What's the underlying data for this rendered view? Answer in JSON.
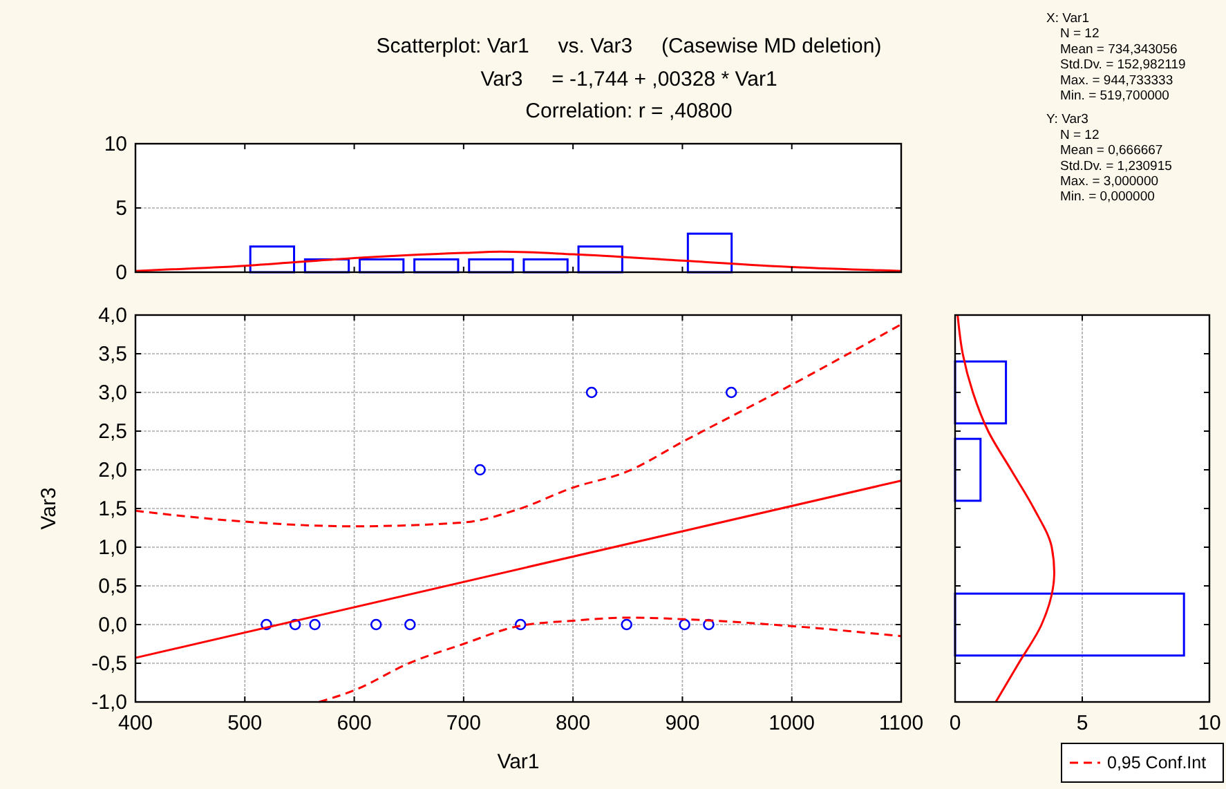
{
  "chart_data": [
    {
      "type": "histogram",
      "title": "Scatterplot: Var1     vs. Var3     (Casewise MD deletion)",
      "subtitle": "Var3     = -1,744 + ,00328 * Var1",
      "annotations": [
        "Correlation: r = ,40800",
        "X: Var1",
        "N = 12",
        "Mean = 734,343056",
        "Std.Dv. = 152,982119",
        "Max. = 944,733333",
        "Min. = 519,700000",
        "Y: Var3",
        "N = 12",
        "Mean = 0,666667",
        "Std.Dv. = 1,230915",
        "Max. = 3,000000",
        "Min. = 0,000000"
      ],
      "xlim": [
        400,
        1100
      ],
      "xticks": [
        {
          "value": 400,
          "label": null
        },
        {
          "value": 500,
          "label": null
        },
        {
          "value": 600,
          "label": null
        },
        {
          "value": 700,
          "label": null
        },
        {
          "value": 800,
          "label": null
        },
        {
          "value": 900,
          "label": null
        },
        {
          "value": 1000,
          "label": null
        },
        {
          "value": 1100,
          "label": null
        }
      ],
      "ylim": [
        0,
        10
      ],
      "yticks": [
        0,
        5,
        10
      ],
      "grid": "y",
      "tick_labels": "y",
      "series": [
        {
          "color": "#0000ff",
          "bins": [
            450,
            500,
            550,
            600,
            650,
            700,
            750,
            800,
            850,
            900,
            950,
            1000
          ],
          "values": [
            0,
            2,
            1,
            1,
            1,
            1,
            1,
            2,
            0,
            3,
            0
          ]
        },
        {
          "type": "line",
          "color": "#ff0000",
          "line_style": "solid",
          "x": [
            400,
            500,
            600,
            700,
            734,
            800,
            900,
            1000,
            1100
          ],
          "values": [
            0.1,
            0.5,
            1.1,
            1.5,
            1.6,
            1.4,
            0.9,
            0.4,
            0.1
          ]
        }
      ]
    },
    {
      "type": "scatter",
      "xlabel": "Var1",
      "ylabel": "Var3",
      "xlim": [
        400,
        1100
      ],
      "xticks": [
        400,
        500,
        600,
        700,
        800,
        900,
        1000,
        1100
      ],
      "ylim": [
        -1,
        4
      ],
      "yticks": [
        {
          "value": -1,
          "label": "-1,0"
        },
        {
          "value": -0.5,
          "label": "-0,5"
        },
        {
          "value": 0,
          "label": "0,0"
        },
        {
          "value": 0.5,
          "label": "0,5"
        },
        {
          "value": 1,
          "label": "1,0"
        },
        {
          "value": 1.5,
          "label": "1,5"
        },
        {
          "value": 2,
          "label": "2,0"
        },
        {
          "value": 2.5,
          "label": "2,5"
        },
        {
          "value": 3,
          "label": "3,0"
        },
        {
          "value": 3.5,
          "label": "3,5"
        },
        {
          "value": 4,
          "label": "4,0"
        }
      ],
      "grid": true,
      "legend": "bottom right",
      "series": [
        {
          "marker": "circle",
          "color": "#0000ff",
          "x": [
            519.7,
            546,
            564,
            620,
            651,
            715,
            752,
            817,
            849,
            902,
            924,
            944.7
          ],
          "values": [
            0,
            0,
            0,
            0,
            0,
            2,
            0,
            3,
            0,
            0,
            0,
            3
          ]
        },
        {
          "type": "line",
          "color": "#ff0000",
          "line_style": "solid",
          "x": [
            400,
            1100
          ],
          "values": [
            -0.43,
            1.86
          ]
        },
        {
          "type": "line",
          "name": "0,95 Conf.Int",
          "color": "#ff0000",
          "line_style": "dashed",
          "x": [
            400,
            500,
            600,
            700,
            750,
            800,
            850,
            900,
            1000,
            1100
          ],
          "values": [
            1.47,
            1.33,
            1.27,
            1.32,
            1.49,
            1.77,
            1.98,
            2.36,
            3.1,
            3.88
          ]
        },
        {
          "type": "line",
          "color": "#ff0000",
          "line_style": "dashed",
          "x": [
            568,
            600,
            650,
            700,
            750,
            800,
            850,
            900,
            1000,
            1100
          ],
          "values": [
            -1.0,
            -0.85,
            -0.5,
            -0.25,
            -0.02,
            0.05,
            0.09,
            0.07,
            -0.02,
            -0.15
          ]
        }
      ]
    },
    {
      "type": "histogram",
      "orientation": "horizontal",
      "xlim": [
        0,
        10
      ],
      "xticks": [
        0,
        5,
        10
      ],
      "ylim": [
        -1,
        4
      ],
      "yticks": [
        {
          "value": -1,
          "label": null
        },
        {
          "value": -0.5,
          "label": null
        },
        {
          "value": 0,
          "label": null
        },
        {
          "value": 0.5,
          "label": null
        },
        {
          "value": 1,
          "label": null
        },
        {
          "value": 1.5,
          "label": null
        },
        {
          "value": 2,
          "label": null
        },
        {
          "value": 2.5,
          "label": null
        },
        {
          "value": 3,
          "label": null
        },
        {
          "value": 3.5,
          "label": null
        },
        {
          "value": 4,
          "label": null
        }
      ],
      "grid": "x",
      "tick_labels": "x",
      "series": [
        {
          "color": "#0000ff",
          "bins": [
            -0.5,
            0.5,
            1.5,
            2.5,
            3.5
          ],
          "values": [
            9,
            0,
            1,
            2
          ]
        },
        {
          "type": "line",
          "color": "#ff0000",
          "line_style": "solid",
          "x": [
            -1,
            -0.5,
            0,
            0.67,
            1,
            1.5,
            2,
            2.5,
            3,
            3.5,
            4
          ],
          "values": [
            1.6,
            2.5,
            3.4,
            3.9,
            3.8,
            3.1,
            2.2,
            1.3,
            0.7,
            0.3,
            0.1
          ]
        }
      ]
    }
  ]
}
